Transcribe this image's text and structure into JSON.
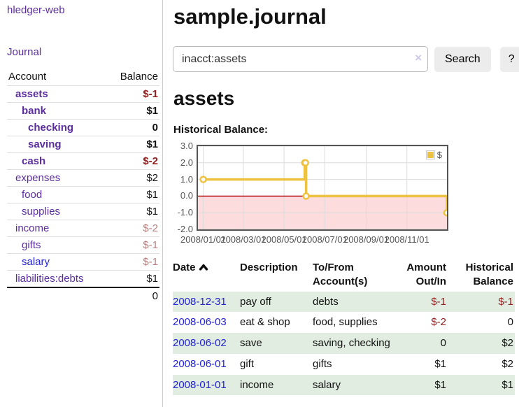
{
  "brand": "hledger-web",
  "nav": {
    "journal": "Journal"
  },
  "sidebar": {
    "headers": {
      "account": "Account",
      "balance": "Balance"
    },
    "rows": [
      {
        "name": "assets",
        "balance": "$-1"
      },
      {
        "name": "bank",
        "balance": "$1"
      },
      {
        "name": "checking",
        "balance": "0"
      },
      {
        "name": "saving",
        "balance": "$1"
      },
      {
        "name": "cash",
        "balance": "$-2"
      },
      {
        "name": "expenses",
        "balance": "$2"
      },
      {
        "name": "food",
        "balance": "$1"
      },
      {
        "name": "supplies",
        "balance": "$1"
      },
      {
        "name": "income",
        "balance": "$-2"
      },
      {
        "name": "gifts",
        "balance": "$-1"
      },
      {
        "name": "salary",
        "balance": "$-1"
      },
      {
        "name": "liabilities:debts",
        "balance": "$1"
      }
    ],
    "total": "0"
  },
  "main": {
    "title": "sample.journal",
    "search": {
      "value": "inacct:assets",
      "clear": "×",
      "search_button": "Search",
      "help_button": "?"
    },
    "account_title": "assets",
    "chart_label": "Historical Balance:"
  },
  "chart_data": {
    "type": "line",
    "style": "step",
    "title": "Historical Balance",
    "series": [
      {
        "name": "$",
        "color": "#edc240",
        "points": [
          [
            "2008-01-01",
            1.0
          ],
          [
            "2008-06-01",
            2.0
          ],
          [
            "2008-06-02",
            2.0
          ],
          [
            "2008-06-03",
            0.0
          ],
          [
            "2008-12-31",
            -1.0
          ]
        ]
      }
    ],
    "x_ticks": [
      "2008/01/01",
      "2008/03/01",
      "2008/05/01",
      "2008/07/01",
      "2008/09/01",
      "2008/11/01"
    ],
    "y_ticks": [
      3.0,
      2.0,
      1.0,
      0.0,
      -1.0,
      -2.0
    ],
    "ylim": [
      -2.0,
      3.0
    ],
    "xlim": [
      "2007-12-24",
      "2008-12-31"
    ],
    "grid": true,
    "legend_position": "top-right",
    "negative_region_color": "#fcdcdc",
    "zero_line_color": "#b00000",
    "grid_color": "#dcdcdc",
    "axis_label_color": "#545454"
  },
  "register": {
    "headers": {
      "date": "Date",
      "description": "Description",
      "account": "To/From Account(s)",
      "amount": "Amount Out/In",
      "balance": "Historical Balance"
    },
    "rows": [
      {
        "date": "2008-12-31",
        "description": "pay off",
        "accounts": "debts",
        "amount": "$-1",
        "balance": "$-1"
      },
      {
        "date": "2008-06-03",
        "description": "eat & shop",
        "accounts": "food, supplies",
        "amount": "$-2",
        "balance": "0"
      },
      {
        "date": "2008-06-02",
        "description": "save",
        "accounts": "saving, checking",
        "amount": "0",
        "balance": "$2"
      },
      {
        "date": "2008-06-01",
        "description": "gift",
        "accounts": "gifts",
        "amount": "$1",
        "balance": "$2"
      },
      {
        "date": "2008-01-01",
        "description": "income",
        "accounts": "salary",
        "amount": "$1",
        "balance": "$1"
      }
    ]
  }
}
